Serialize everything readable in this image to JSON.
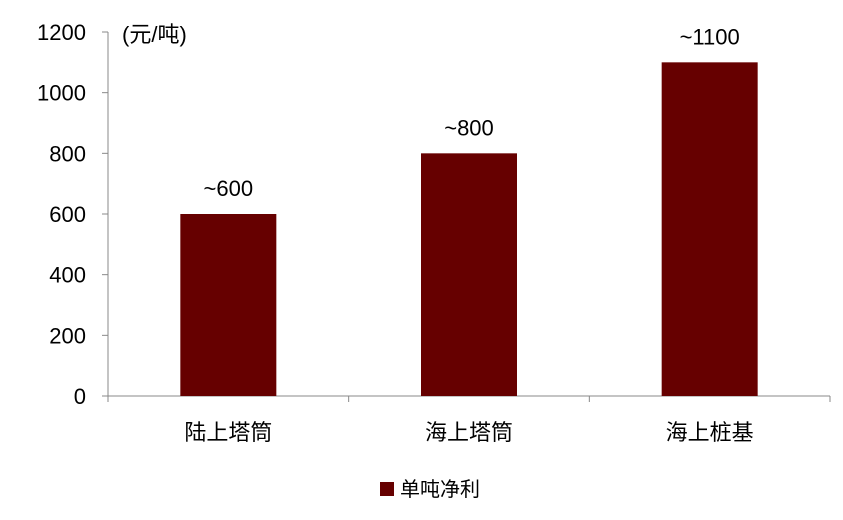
{
  "chart_data": {
    "type": "bar",
    "categories": [
      "陆上塔筒",
      "海上塔筒",
      "海上桩基"
    ],
    "series": [
      {
        "name": "单吨净利",
        "values": [
          600,
          800,
          1100
        ],
        "data_labels": [
          "~600",
          "~800",
          "~1100"
        ],
        "color": "#660000"
      }
    ],
    "ylabel": "(元/吨)",
    "ylim": [
      0,
      1200
    ],
    "yticks": [
      0,
      200,
      400,
      600,
      800,
      1000,
      1200
    ],
    "grid": false,
    "legend": "bottom"
  }
}
